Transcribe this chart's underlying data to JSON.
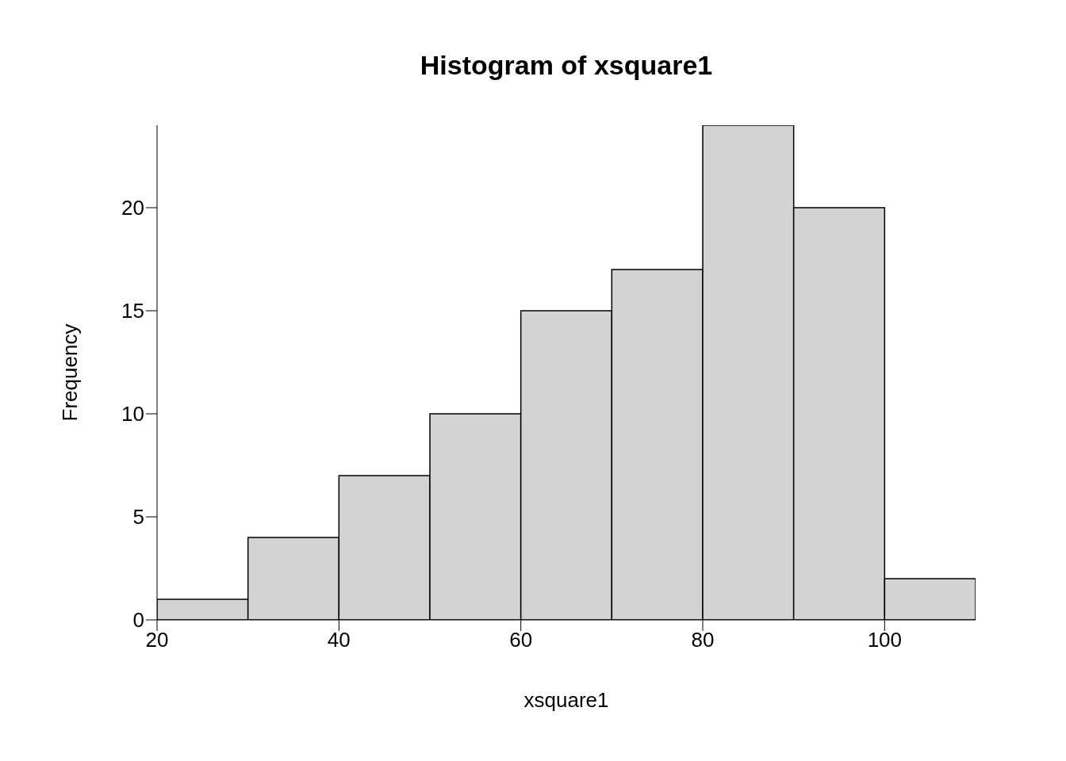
{
  "chart_data": {
    "type": "histogram",
    "title": "Histogram of xsquare1",
    "xlabel": "xsquare1",
    "ylabel": "Frequency",
    "bins": [
      20,
      30,
      40,
      50,
      60,
      70,
      80,
      90,
      100,
      110
    ],
    "values": [
      1,
      4,
      7,
      10,
      15,
      17,
      24,
      20,
      2
    ],
    "color": "#d3d3d3",
    "xlim": [
      20,
      110
    ],
    "xticks": [
      20,
      40,
      60,
      80,
      100
    ],
    "ylim": [
      0,
      24
    ],
    "yticks": [
      0,
      5,
      10,
      15,
      20
    ],
    "grid": false
  }
}
